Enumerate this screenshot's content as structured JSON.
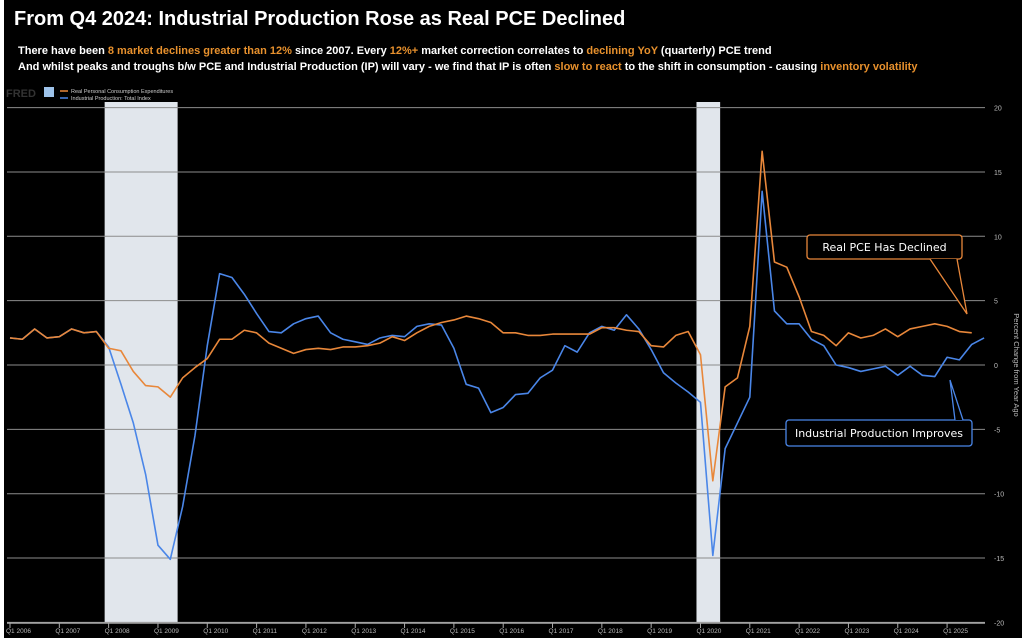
{
  "title": "From Q4 2024: Industrial Production Rose as Real PCE Declined",
  "subtitle1": [
    {
      "text": "There have been ",
      "hl": false
    },
    {
      "text": "8 market declines greater than 12%",
      "hl": true
    },
    {
      "text": " since 2007. Every ",
      "hl": false
    },
    {
      "text": "12%+",
      "hl": true
    },
    {
      "text": " market correction correlates to ",
      "hl": false
    },
    {
      "text": "declining YoY",
      "hl": true
    },
    {
      "text": " (quarterly) PCE trend",
      "hl": false
    }
  ],
  "subtitle2": [
    {
      "text": "And whilst peaks and troughs b/w PCE and Industrial Production (IP) will vary - we find that IP is often ",
      "hl": false
    },
    {
      "text": "slow to react",
      "hl": true
    },
    {
      "text": " to the shift in consumption - causing ",
      "hl": false
    },
    {
      "text": "inventory volatility",
      "hl": true
    }
  ],
  "colors": {
    "highlight": "#e8912d",
    "pce": "#e8873a",
    "ip": "#4a86e8",
    "recession": "#e1e6ec",
    "grid": "#8c8c8c"
  },
  "chart_data": {
    "type": "line",
    "source_logo": "FRED",
    "ylabel": "Percent Change from Year Ago",
    "ylim": [
      -20,
      20
    ],
    "yticks": [
      20,
      15,
      10,
      5,
      0,
      -5,
      -10,
      -15,
      -20
    ],
    "xticks": [
      "Q1 2006",
      "Q1 2007",
      "Q1 2008",
      "Q1 2009",
      "Q1 2010",
      "Q1 2011",
      "Q1 2012",
      "Q1 2013",
      "Q1 2014",
      "Q1 2015",
      "Q1 2016",
      "Q1 2017",
      "Q1 2018",
      "Q1 2019",
      "Q1 2020",
      "Q1 2021",
      "Q1 2022",
      "Q1 2023",
      "Q1 2024",
      "Q1 2025"
    ],
    "x_start": "Q1 2006",
    "frequency": "quarterly",
    "grid": true,
    "legend_placement": "top-left",
    "recessions": [
      [
        "Q1 2008",
        "Q2 2009"
      ],
      [
        "Q1 2020",
        "Q2 2020"
      ]
    ],
    "series": [
      {
        "name": "Real Personal Consumption Expenditures",
        "color": "#e8873a",
        "values": [
          2.1,
          2.0,
          2.8,
          2.1,
          2.2,
          2.8,
          2.5,
          2.6,
          1.3,
          1.1,
          -0.5,
          -1.6,
          -1.7,
          -2.5,
          -1.0,
          -0.2,
          0.5,
          2.0,
          2.0,
          2.7,
          2.5,
          1.7,
          1.3,
          0.9,
          1.2,
          1.3,
          1.2,
          1.4,
          1.4,
          1.5,
          1.7,
          2.2,
          1.9,
          2.5,
          3.0,
          3.3,
          3.5,
          3.8,
          3.6,
          3.3,
          2.5,
          2.5,
          2.3,
          2.3,
          2.4,
          2.4,
          2.4,
          2.4,
          2.9,
          2.9,
          2.7,
          2.6,
          1.5,
          1.4,
          2.3,
          2.6,
          0.8,
          -9.0,
          -1.7,
          -1.0,
          3.0,
          16.6,
          8.0,
          7.6,
          5.3,
          2.6,
          2.3,
          1.5,
          2.5,
          2.1,
          2.3,
          2.8,
          2.2,
          2.8,
          3.0,
          3.2,
          3.0,
          2.6,
          2.5,
          null
        ]
      },
      {
        "name": "Industrial Production: Total Index",
        "color": "#4a86e8",
        "values": [
          2.1,
          2.0,
          2.8,
          2.1,
          2.2,
          2.8,
          2.5,
          2.6,
          1.4,
          -1.5,
          -4.5,
          -8.5,
          -14.0,
          -15.1,
          -11.0,
          -5.5,
          1.5,
          7.1,
          6.8,
          5.5,
          4.0,
          2.6,
          2.5,
          3.2,
          3.6,
          3.8,
          2.5,
          2.0,
          1.8,
          1.6,
          2.1,
          2.3,
          2.2,
          3.0,
          3.2,
          3.1,
          1.3,
          -1.5,
          -1.8,
          -3.7,
          -3.3,
          -2.3,
          -2.2,
          -1.0,
          -0.4,
          1.5,
          1.0,
          2.5,
          3.0,
          2.7,
          3.9,
          2.8,
          1.2,
          -0.6,
          -1.4,
          -2.1,
          -2.9,
          -14.8,
          -6.5,
          -4.5,
          -2.5,
          13.5,
          4.2,
          3.2,
          3.2,
          2.0,
          1.5,
          0.0,
          -0.2,
          -0.5,
          -0.3,
          -0.1,
          -0.8,
          -0.1,
          -0.8,
          -0.9,
          0.6,
          0.4,
          1.6,
          2.1
        ]
      }
    ],
    "annotations": [
      {
        "text": "Real PCE Has Declined",
        "color": "#e8873a",
        "points_to": "Q4 2025",
        "value": 4.0
      },
      {
        "text": "Industrial Production Improves",
        "color": "#4a86e8",
        "points_to": "Q2 2025",
        "value": -1.2
      }
    ]
  }
}
